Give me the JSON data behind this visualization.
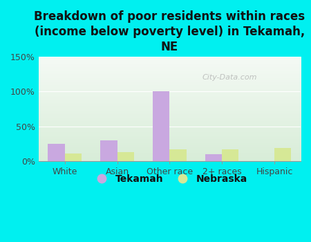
{
  "title": "Breakdown of poor residents within races\n(income below poverty level) in Tekamah,\nNE",
  "categories": [
    "White",
    "Asian",
    "Other race",
    "2+ races",
    "Hispanic"
  ],
  "tekamah_values": [
    25,
    30,
    100,
    10,
    0
  ],
  "nebraska_values": [
    11,
    13,
    17,
    17,
    19
  ],
  "tekamah_color": "#c9a8e0",
  "nebraska_color": "#d6e896",
  "bar_width": 0.32,
  "ylim": [
    0,
    150
  ],
  "yticks": [
    0,
    50,
    100,
    150
  ],
  "ytick_labels": [
    "0%",
    "50%",
    "100%",
    "150%"
  ],
  "background_color": "#00f0f0",
  "grad_top_color": "#f5faf5",
  "grad_bottom_color": "#d8edd8",
  "watermark": "City-Data.com",
  "legend_labels": [
    "Tekamah",
    "Nebraska"
  ],
  "title_fontsize": 12,
  "tick_fontsize": 9,
  "legend_fontsize": 10,
  "title_color": "#111111",
  "tick_color": "#444444",
  "legend_text_color": "#111111"
}
